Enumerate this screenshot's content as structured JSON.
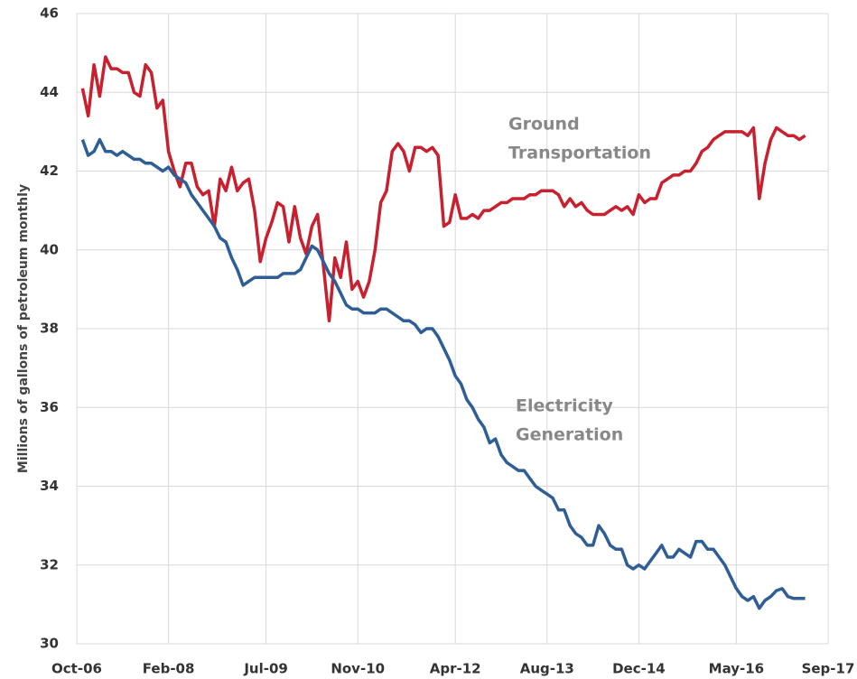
{
  "chart_data": {
    "type": "line",
    "y_label": "Millions of gallons of petroleum monthly",
    "categories": [
      "Oct-06",
      null,
      null,
      null,
      null,
      null,
      null,
      null,
      null,
      null,
      null,
      null,
      null,
      null,
      null,
      null,
      "Feb-08",
      null,
      null,
      null,
      null,
      null,
      null,
      null,
      null,
      null,
      null,
      null,
      null,
      null,
      null,
      null,
      null,
      "Jul-09",
      null,
      null,
      null,
      null,
      null,
      null,
      null,
      null,
      null,
      null,
      null,
      null,
      null,
      null,
      null,
      "Nov-10",
      null,
      null,
      null,
      null,
      null,
      null,
      null,
      null,
      null,
      null,
      null,
      null,
      null,
      null,
      null,
      null,
      "Apr-12",
      null,
      null,
      null,
      null,
      null,
      null,
      null,
      null,
      null,
      null,
      null,
      null,
      null,
      null,
      null,
      "Aug-13",
      null,
      null,
      null,
      null,
      null,
      null,
      null,
      null,
      null,
      null,
      null,
      null,
      null,
      null,
      null,
      "Dec-14",
      null,
      null,
      null,
      null,
      null,
      null,
      null,
      null,
      null,
      null,
      null,
      null,
      null,
      null,
      null,
      null,
      "May-16",
      null,
      null,
      null,
      null,
      null,
      null,
      null,
      null,
      null,
      null,
      null,
      null,
      null,
      null,
      null,
      "Sep-17"
    ],
    "series": [
      {
        "name": "Ground Transportation",
        "color": "#c8202f",
        "values": [
          null,
          44.1,
          43.4,
          44.7,
          43.9,
          44.9,
          44.6,
          44.6,
          44.5,
          44.5,
          44.0,
          43.9,
          44.7,
          44.5,
          43.6,
          43.8,
          42.5,
          42.0,
          41.6,
          42.2,
          42.2,
          41.6,
          41.4,
          41.5,
          40.6,
          41.8,
          41.5,
          42.1,
          41.5,
          41.7,
          41.8,
          41.0,
          39.7,
          40.3,
          40.7,
          41.2,
          41.1,
          40.2,
          41.1,
          40.3,
          39.9,
          40.6,
          40.9,
          39.6,
          38.2,
          39.8,
          39.3,
          40.2,
          39.0,
          39.2,
          38.8,
          39.2,
          40.0,
          41.2,
          41.5,
          42.5,
          42.7,
          42.5,
          42.0,
          42.6,
          42.6,
          42.5,
          42.6,
          42.4,
          40.6,
          40.7,
          41.4,
          40.8,
          40.8,
          40.9,
          40.8,
          41.0,
          41.0,
          41.1,
          41.2,
          41.2,
          41.3,
          41.3,
          41.3,
          41.4,
          41.4,
          41.5,
          41.5,
          41.5,
          41.4,
          41.1,
          41.3,
          41.1,
          41.2,
          41.0,
          40.9,
          40.9,
          40.9,
          41.0,
          41.1,
          41.0,
          41.1,
          40.9,
          41.4,
          41.2,
          41.3,
          41.3,
          41.7,
          41.8,
          41.9,
          41.9,
          42.0,
          42.0,
          42.2,
          42.5,
          42.6,
          42.8,
          42.9,
          43.0,
          43.0,
          43.0,
          43.0,
          42.9,
          43.1,
          41.3,
          42.2,
          42.8,
          43.1,
          43.0,
          42.9,
          42.9,
          42.8,
          42.9,
          null,
          null,
          null,
          null
        ]
      },
      {
        "name": "Electricity Generation",
        "color": "#2f5e97",
        "values": [
          null,
          42.8,
          42.4,
          42.5,
          42.8,
          42.5,
          42.5,
          42.4,
          42.5,
          42.4,
          42.3,
          42.3,
          42.2,
          42.2,
          42.1,
          42.0,
          42.1,
          41.9,
          41.8,
          41.7,
          41.4,
          41.2,
          41.0,
          40.8,
          40.6,
          40.3,
          40.2,
          39.8,
          39.5,
          39.1,
          39.2,
          39.3,
          39.3,
          39.3,
          39.3,
          39.3,
          39.4,
          39.4,
          39.4,
          39.5,
          39.8,
          40.1,
          40.0,
          39.7,
          39.4,
          39.2,
          38.9,
          38.6,
          38.5,
          38.5,
          38.4,
          38.4,
          38.4,
          38.5,
          38.5,
          38.4,
          38.3,
          38.2,
          38.2,
          38.1,
          37.9,
          38.0,
          38.0,
          37.8,
          37.5,
          37.2,
          36.8,
          36.6,
          36.2,
          36.0,
          35.7,
          35.5,
          35.1,
          35.2,
          34.8,
          34.6,
          34.5,
          34.4,
          34.4,
          34.2,
          34.0,
          33.9,
          33.8,
          33.7,
          33.4,
          33.4,
          33.0,
          32.8,
          32.7,
          32.5,
          32.5,
          33.0,
          32.8,
          32.5,
          32.4,
          32.4,
          32.0,
          31.9,
          32.0,
          31.9,
          32.1,
          32.3,
          32.5,
          32.2,
          32.2,
          32.4,
          32.3,
          32.2,
          32.6,
          32.6,
          32.4,
          32.4,
          32.2,
          32.0,
          31.7,
          31.4,
          31.2,
          31.1,
          31.2,
          30.9,
          31.1,
          31.2,
          31.35,
          31.4,
          31.2,
          31.15,
          31.15,
          31.15,
          null,
          null,
          null,
          null
        ]
      }
    ],
    "annotations": [
      {
        "lines": [
          "Ground",
          "Transportation"
        ]
      },
      {
        "lines": [
          "Electricity",
          "Generation"
        ]
      }
    ],
    "ylim": [
      30,
      46
    ],
    "yticks": [
      30,
      32,
      34,
      36,
      38,
      40,
      42,
      44,
      46
    ],
    "grid": true
  }
}
